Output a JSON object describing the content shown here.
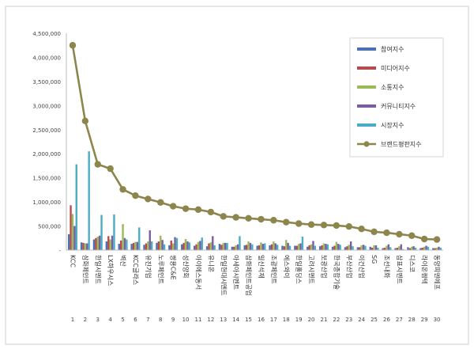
{
  "chart_data": {
    "type": "bar",
    "title": "",
    "xlabel": "",
    "ylabel": "",
    "ylim": [
      0,
      4500000
    ],
    "yticks": [
      0,
      500000,
      1000000,
      1500000,
      2000000,
      2500000,
      3000000,
      3500000,
      4000000,
      4500000
    ],
    "ytick_labels": [
      "-",
      "500,000",
      "1,000,000",
      "1,500,000",
      "2,000,000",
      "2,500,000",
      "3,000,000",
      "3,500,000",
      "4,000,000",
      "4,500,000"
    ],
    "legend_position": "right",
    "categories": [
      "KCC",
      "삼화페인트",
      "한일시멘트",
      "LX하우시스",
      "벽산",
      "KCC글라스",
      "유진기업",
      "노루페인트",
      "쌍용C&E",
      "성신양회",
      "아이에스동서",
      "유니온",
      "한일현대시멘트",
      "아세아시멘트",
      "삼화페인트공업",
      "일신석재",
      "조광페인트",
      "에스와이",
      "한일홀딩스",
      "고려시멘트",
      "보광산업",
      "한국종합기술",
      "부산산업",
      "이건산업",
      "SG",
      "조선내화",
      "삼표시멘트",
      "디스코",
      "라이온켐텍",
      "동양피엔에프"
    ],
    "rank_labels": [
      "1",
      "2",
      "3",
      "4",
      "5",
      "6",
      "7",
      "8",
      "9",
      "10",
      "11",
      "12",
      "13",
      "14",
      "15",
      "16",
      "17",
      "18",
      "19",
      "20",
      "21",
      "22",
      "23",
      "24",
      "25",
      "26",
      "27",
      "28",
      "29",
      "30"
    ],
    "series": [
      {
        "name": "참여지수",
        "kind": "bar",
        "color": "#4a72b4",
        "values": [
          330000,
          160000,
          220000,
          180000,
          130000,
          130000,
          110000,
          150000,
          100000,
          120000,
          90000,
          80000,
          130000,
          70000,
          100000,
          90000,
          100000,
          90000,
          90000,
          70000,
          80000,
          70000,
          60000,
          60000,
          70000,
          40000,
          40000,
          60000,
          40000,
          40000
        ]
      },
      {
        "name": "미디어지수",
        "kind": "bar",
        "color": "#b84a4a",
        "values": [
          930000,
          150000,
          250000,
          290000,
          200000,
          150000,
          140000,
          180000,
          200000,
          150000,
          120000,
          140000,
          110000,
          70000,
          110000,
          100000,
          120000,
          80000,
          90000,
          100000,
          100000,
          90000,
          80000,
          60000,
          50000,
          50000,
          50000,
          40000,
          50000,
          40000
        ]
      },
      {
        "name": "소통지수",
        "kind": "bar",
        "color": "#9bbb59",
        "values": [
          750000,
          140000,
          280000,
          220000,
          540000,
          170000,
          180000,
          300000,
          140000,
          230000,
          170000,
          160000,
          150000,
          100000,
          180000,
          160000,
          180000,
          210000,
          130000,
          120000,
          140000,
          170000,
          110000,
          100000,
          100000,
          90000,
          80000,
          70000,
          70000,
          50000
        ]
      },
      {
        "name": "커뮤니티지수",
        "kind": "bar",
        "color": "#7a5ea1",
        "values": [
          500000,
          140000,
          300000,
          300000,
          250000,
          170000,
          410000,
          210000,
          270000,
          180000,
          190000,
          290000,
          150000,
          120000,
          150000,
          130000,
          140000,
          150000,
          140000,
          190000,
          130000,
          130000,
          180000,
          110000,
          100000,
          120000,
          120000,
          80000,
          90000,
          70000
        ]
      },
      {
        "name": "시장지수",
        "kind": "bar",
        "color": "#4bacc6",
        "values": [
          1780000,
          2050000,
          730000,
          740000,
          220000,
          470000,
          180000,
          120000,
          250000,
          160000,
          260000,
          100000,
          150000,
          290000,
          120000,
          140000,
          110000,
          90000,
          280000,
          90000,
          120000,
          110000,
          80000,
          90000,
          50000,
          60000,
          20000,
          50000,
          70000,
          50000
        ]
      },
      {
        "name": "브랜드평판지수",
        "kind": "line",
        "color": "#8c864c",
        "values": [
          4250000,
          2680000,
          1780000,
          1690000,
          1260000,
          1130000,
          1060000,
          990000,
          910000,
          860000,
          840000,
          790000,
          700000,
          680000,
          660000,
          640000,
          620000,
          580000,
          550000,
          530000,
          520000,
          510000,
          490000,
          440000,
          380000,
          360000,
          330000,
          300000,
          230000,
          220000
        ]
      }
    ]
  }
}
